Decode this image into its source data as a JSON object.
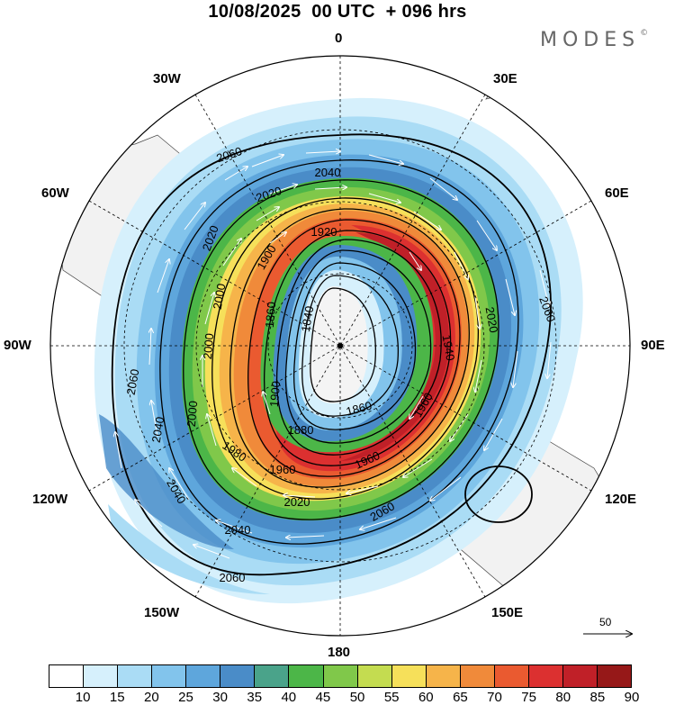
{
  "title": "10/08/2025  00 UTC  + 096 hrs",
  "brand": "MODES",
  "brand_mark": "©",
  "longitude_labels": {
    "n": "0",
    "s": "180",
    "w90": "90W",
    "e90": "90E",
    "w30": "30W",
    "e30": "30E",
    "w60": "60W",
    "e60": "60E",
    "w120": "120W",
    "e120": "120E",
    "w150": "150W",
    "e150": "150E"
  },
  "contour_labels": {
    "c2060a": "2060",
    "c2060b": "2060",
    "c2060c": "2060",
    "c2060d": "2060",
    "c2060e": "2060",
    "c2040a": "2040",
    "c2040b": "2040",
    "c2040c": "2040",
    "c2040d": "2040",
    "c2020a": "2020",
    "c2020b": "2020",
    "c2020c": "2020",
    "c2020d": "2020",
    "c2000a": "2000",
    "c2000b": "2000",
    "c2000c": "2000",
    "c1980a": "1980",
    "c1960a": "1960",
    "c1960b": "1960",
    "c1960c": "1960",
    "c1940a": "1940",
    "c1920a": "1920",
    "c1900a": "1900",
    "c1900b": "1900",
    "c1880a": "1880",
    "c1860a": "1860",
    "c1860b": "1860",
    "c1840a": "1840"
  },
  "vector_reference": "50",
  "colorbar": {
    "ticks": [
      "10",
      "15",
      "20",
      "25",
      "30",
      "35",
      "40",
      "45",
      "50",
      "55",
      "60",
      "65",
      "70",
      "75",
      "80",
      "85",
      "90"
    ],
    "colors": [
      "#ffffff",
      "#d6f0fc",
      "#aadcf5",
      "#82c4ec",
      "#5ea6dc",
      "#4a8cc8",
      "#4aa38a",
      "#4cb648",
      "#80c84a",
      "#c4dc50",
      "#f6e05a",
      "#f6b44a",
      "#f08a3a",
      "#ea5a30",
      "#dc3030",
      "#c02028",
      "#961818"
    ]
  }
}
